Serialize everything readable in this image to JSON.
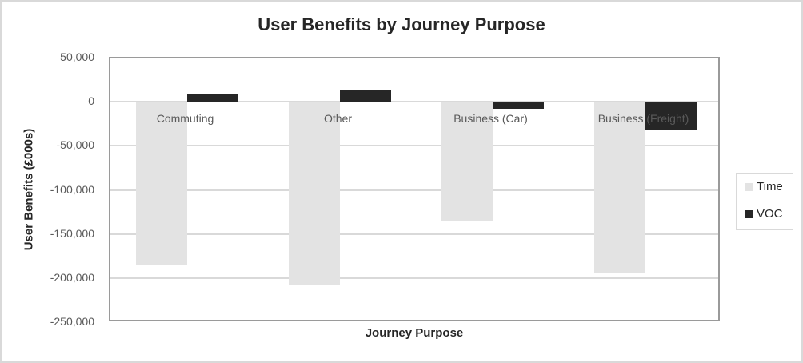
{
  "chart_data": {
    "type": "bar",
    "title": "User Benefits by Journey Purpose",
    "xlabel": "Journey Purpose",
    "ylabel": "User Benefits (£000s)",
    "categories": [
      "Commuting",
      "Other",
      "Business (Car)",
      "Business (Freight)"
    ],
    "series": [
      {
        "name": "Time",
        "color": "#e3e3e3",
        "values": [
          -185000,
          -207000,
          -136000,
          -194000
        ]
      },
      {
        "name": "VOC",
        "color": "#262626",
        "values": [
          9000,
          13500,
          -8000,
          -32500
        ]
      }
    ],
    "ylim": [
      -250000,
      50000
    ],
    "yticks": [
      50000,
      0,
      -50000,
      -100000,
      -150000,
      -200000,
      -250000
    ],
    "ytick_labels": [
      "50,000",
      "0",
      "-50,000",
      "-100,000",
      "-150,000",
      "-200,000",
      "-250,000"
    ],
    "grid": true,
    "legend_position": "right"
  },
  "title": "User Benefits by Journey Purpose",
  "xlabel": "Journey Purpose",
  "ylabel": "User Benefits (£000s)",
  "legend": [
    {
      "label": "Time",
      "color": "#e3e3e3"
    },
    {
      "label": "VOC",
      "color": "#262626"
    }
  ]
}
